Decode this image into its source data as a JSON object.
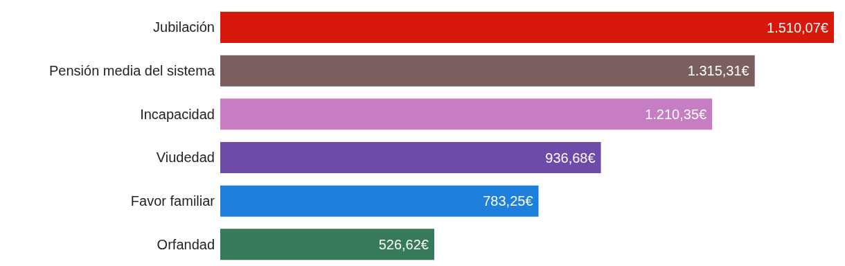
{
  "chart_data": {
    "type": "bar",
    "orientation": "horizontal",
    "categories": [
      "Jubilación",
      "Pensión media del sistema",
      "Incapacidad",
      "Viudedad",
      "Favor familiar",
      "Orfandad"
    ],
    "values": [
      1510.07,
      1315.31,
      1210.35,
      936.68,
      783.25,
      526.62
    ],
    "colors": [
      "#d7190b",
      "#7a5f5e",
      "#c67dc4",
      "#6d4ba8",
      "#1f7fdc",
      "#377a5a"
    ],
    "value_labels": [
      "1.510,07€",
      "1.315,31€",
      "1.210,35€",
      "936,68€",
      "783,25€",
      "526,62€"
    ]
  }
}
